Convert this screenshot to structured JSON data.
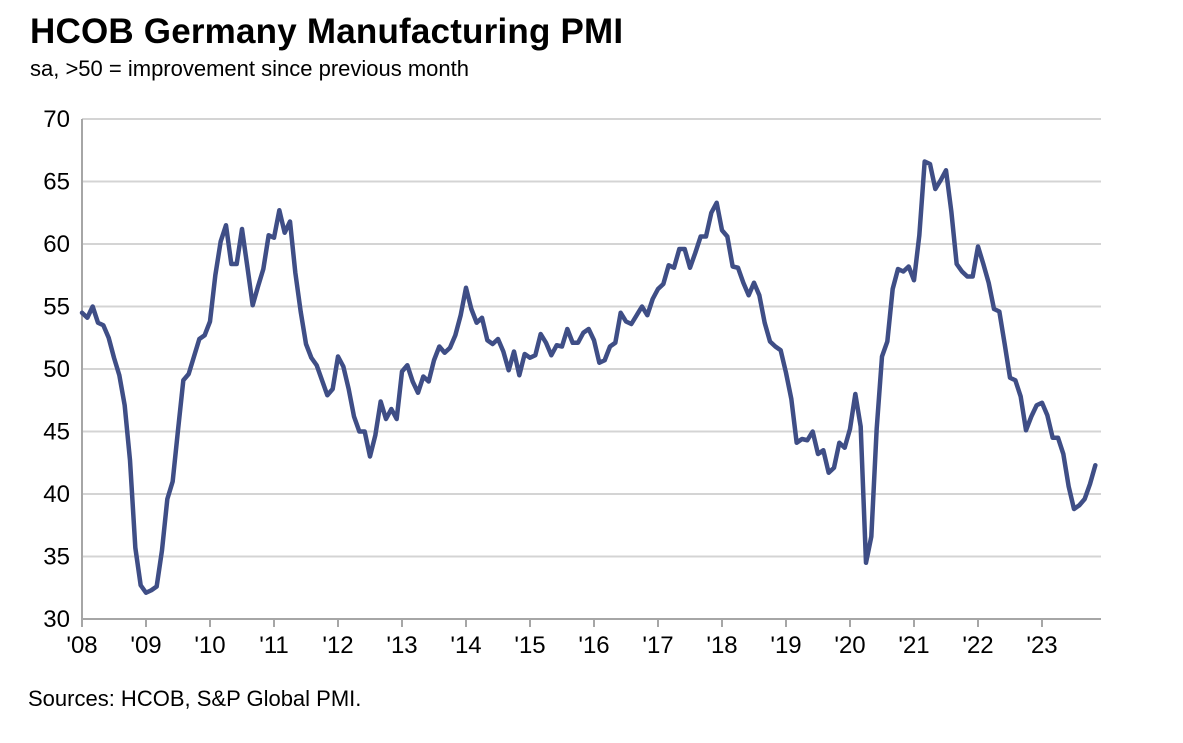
{
  "chart_data": {
    "type": "line",
    "title": "HCOB Germany Manufacturing PMI",
    "subtitle": "sa, >50 = improvement since previous month",
    "source": "Sources: HCOB, S&P Global PMI.",
    "xlabel": "",
    "ylabel": "",
    "ylim": [
      30,
      70
    ],
    "y_ticks": [
      30,
      35,
      40,
      45,
      50,
      55,
      60,
      65,
      70
    ],
    "y_tick_labels": [
      "30",
      "35",
      "40",
      "45",
      "50",
      "55",
      "60",
      "65",
      "70"
    ],
    "x_tick_labels": [
      "'08",
      "'09",
      "'10",
      "'11",
      "'12",
      "'13",
      "'14",
      "'15",
      "'16",
      "'17",
      "'18",
      "'19",
      "'20",
      "'21",
      "'22",
      "'23"
    ],
    "x_start_year": 2008,
    "grid": true,
    "line_color": "#3f4e86",
    "series": [
      {
        "name": "HCOB Germany Manufacturing PMI",
        "values": [
          54.5,
          54.1,
          55.0,
          53.7,
          53.5,
          52.5,
          50.9,
          49.5,
          47.1,
          42.7,
          35.7,
          32.7,
          32.1,
          32.3,
          32.6,
          35.5,
          39.6,
          41.0,
          45.1,
          49.1,
          49.6,
          51.0,
          52.4,
          52.7,
          53.8,
          57.5,
          60.2,
          61.5,
          58.4,
          58.4,
          61.2,
          58.2,
          55.1,
          56.6,
          58.0,
          60.7,
          60.5,
          62.7,
          60.9,
          61.8,
          57.7,
          54.6,
          52.0,
          50.9,
          50.3,
          49.1,
          47.9,
          48.4,
          51.0,
          50.2,
          48.4,
          46.2,
          45.0,
          45.0,
          43.0,
          44.7,
          47.4,
          46.0,
          46.8,
          46.0,
          49.8,
          50.3,
          49.0,
          48.1,
          49.4,
          49.0,
          50.7,
          51.8,
          51.3,
          51.7,
          52.7,
          54.3,
          56.5,
          54.8,
          53.7,
          54.1,
          52.3,
          52.0,
          52.4,
          51.4,
          49.9,
          51.4,
          49.5,
          51.2,
          50.9,
          51.1,
          52.8,
          52.1,
          51.1,
          51.9,
          51.8,
          53.2,
          52.1,
          52.1,
          52.9,
          53.2,
          52.3,
          50.5,
          50.7,
          51.8,
          52.1,
          54.5,
          53.8,
          53.6,
          54.3,
          55.0,
          54.3,
          55.6,
          56.4,
          56.8,
          58.3,
          58.1,
          59.6,
          59.6,
          58.1,
          59.3,
          60.6,
          60.6,
          62.5,
          63.3,
          61.1,
          60.6,
          58.2,
          58.1,
          56.9,
          55.9,
          56.9,
          55.9,
          53.7,
          52.2,
          51.8,
          51.5,
          49.7,
          47.6,
          44.1,
          44.4,
          44.3,
          45.0,
          43.2,
          43.5,
          41.7,
          42.1,
          44.1,
          43.7,
          45.2,
          48.0,
          45.4,
          34.5,
          36.6,
          45.2,
          51.0,
          52.2,
          56.4,
          58.0,
          57.8,
          58.2,
          57.1,
          60.7,
          66.6,
          66.4,
          64.4,
          65.1,
          65.9,
          62.6,
          58.4,
          57.8,
          57.4,
          57.4,
          59.8,
          58.4,
          56.9,
          54.8,
          54.6,
          52.0,
          49.3,
          49.1,
          47.8,
          45.1,
          46.2,
          47.1,
          47.3,
          46.3,
          44.5,
          44.5,
          43.2,
          40.6,
          38.8,
          39.1,
          39.6,
          40.8,
          42.3
        ]
      }
    ]
  }
}
